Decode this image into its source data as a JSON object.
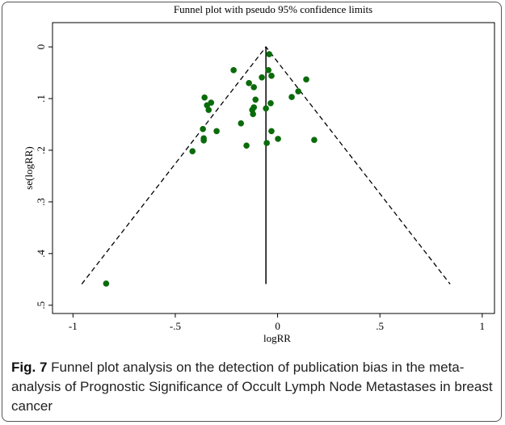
{
  "chart_data": {
    "type": "scatter",
    "title": "Funnel plot with pseudo 95% confidence limits",
    "x_label": "logRR",
    "y_label": "se(logRR)",
    "xlim": [
      -1.1,
      1.06
    ],
    "ylim": [
      -0.047,
      0.516
    ],
    "y_inverted": true,
    "xticks": [
      -1,
      {
        "value": -0.5,
        "label": "-.5"
      },
      0,
      {
        "value": 0.5,
        "label": ".5"
      },
      1
    ],
    "yticks": [
      0,
      {
        "value": 0.1,
        "label": ".1"
      },
      {
        "value": 0.2,
        "label": ".2"
      },
      {
        "value": 0.3,
        "label": ".3"
      },
      {
        "value": 0.4,
        "label": ".4"
      },
      {
        "value": 0.5,
        "label": ".5"
      }
    ],
    "series": [
      {
        "color": "#0a6b0a",
        "x": [
          -0.041,
          -0.215,
          -0.045,
          -0.077,
          -0.03,
          0.14,
          -0.14,
          -0.116,
          0.101,
          0.069,
          -0.357,
          -0.108,
          -0.034,
          -0.345,
          -0.325,
          -0.116,
          -0.124,
          -0.337,
          -0.057,
          -0.12,
          -0.179,
          -0.03,
          -0.298,
          -0.365,
          -0.361,
          -0.361,
          -0.053,
          0.002,
          0.179,
          -0.152,
          -0.416,
          -0.838
        ],
        "y": [
          0.014,
          0.045,
          0.045,
          0.059,
          0.056,
          0.063,
          0.07,
          0.078,
          0.086,
          0.097,
          0.098,
          0.102,
          0.109,
          0.113,
          0.108,
          0.117,
          0.122,
          0.122,
          0.119,
          0.13,
          0.148,
          0.163,
          0.163,
          0.159,
          0.177,
          0.181,
          0.186,
          0.178,
          0.18,
          0.191,
          0.202,
          0.458
        ]
      }
    ],
    "reference_lines": [
      {
        "style": "dashed",
        "x": [
          -0.957,
          -0.057,
          0.843
        ],
        "y": [
          0.459,
          0,
          0.459
        ]
      },
      {
        "style": "solid",
        "x": [
          -0.057,
          -0.057
        ],
        "y": [
          0,
          0.459
        ]
      }
    ]
  },
  "caption": {
    "label": "Fig. 7",
    "text": "Funnel plot analysis on the detection of publication bias in the meta-analysis of Prognostic Significance of Occult Lymph Node Metastases in breast cancer"
  }
}
